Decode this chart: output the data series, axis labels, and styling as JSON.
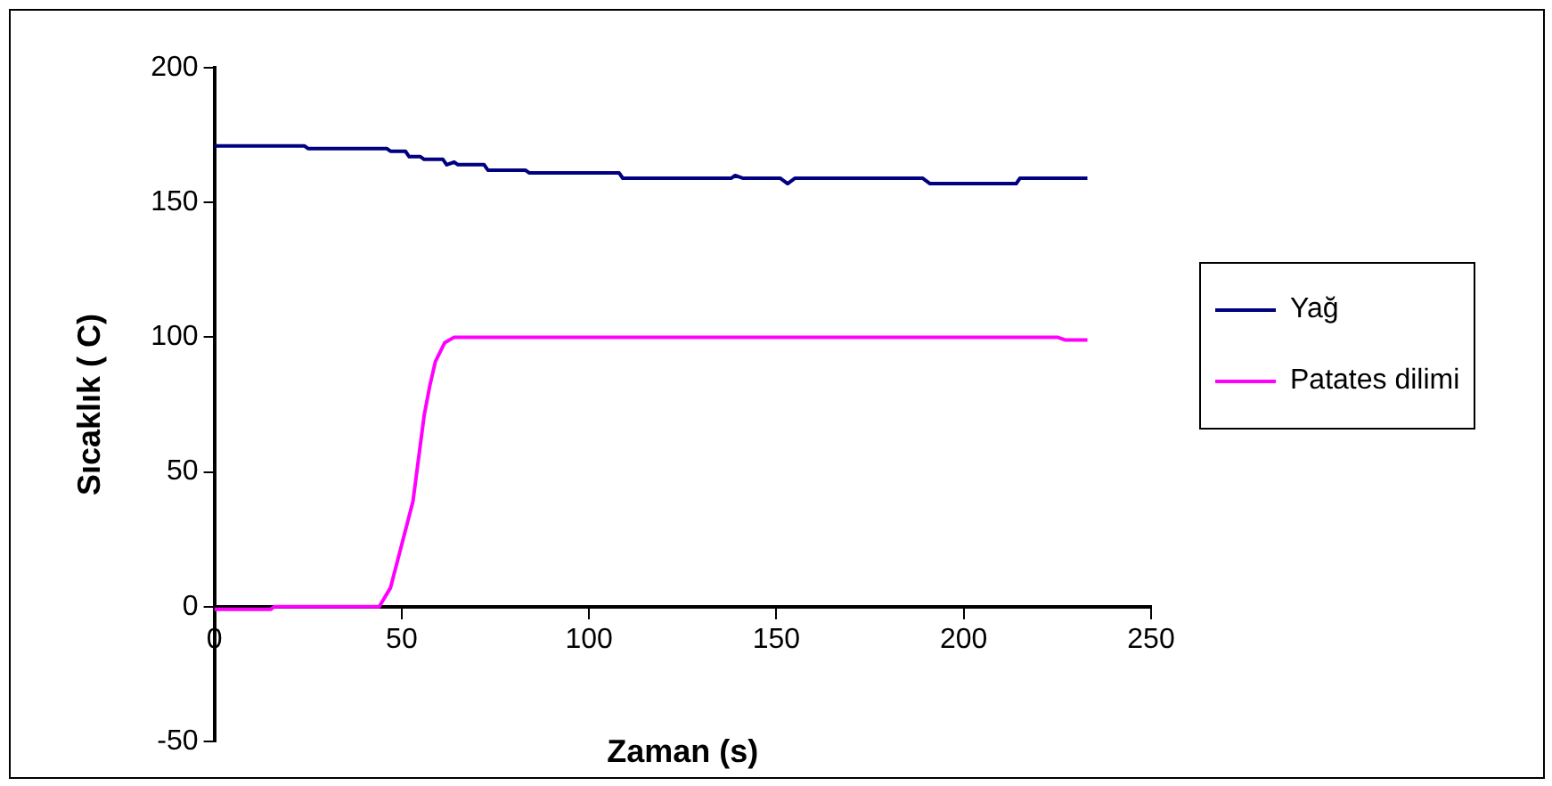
{
  "chart_data": {
    "type": "line",
    "xlabel": "Zaman (s)",
    "ylabel": "Sıcaklık ( C)",
    "xlim": [
      0,
      250
    ],
    "xticks": [
      0,
      50,
      100,
      150,
      200,
      250
    ],
    "ylim": [
      -50,
      200
    ],
    "yticks": [
      -50,
      0,
      50,
      100,
      150,
      200
    ],
    "grid": false,
    "legend": "right",
    "marker": "none",
    "line_style": "solid",
    "series": [
      {
        "name": "Yağ",
        "color": "#000080",
        "x": [
          0,
          24,
          25,
          46,
          47,
          51,
          52,
          55,
          56,
          61,
          62,
          64,
          65,
          72,
          73,
          83,
          84,
          108,
          109,
          138,
          139,
          141,
          151,
          153,
          155,
          189,
          191,
          214,
          215,
          233
        ],
        "values": [
          171,
          171,
          170,
          170,
          169,
          169,
          167,
          167,
          166,
          166,
          164,
          165,
          164,
          164,
          162,
          162,
          161,
          161,
          159,
          159,
          160,
          159,
          159,
          157,
          159,
          159,
          157,
          157,
          159,
          159
        ]
      },
      {
        "name": "Patates dilimi",
        "color": "#ff00ff",
        "x": [
          0,
          15,
          16,
          44,
          47,
          50,
          53,
          54.5,
          56,
          57.5,
          59,
          61.5,
          64,
          66,
          225,
          227,
          233
        ],
        "values": [
          -1,
          -1,
          0,
          0,
          7,
          23,
          39,
          55,
          71,
          82,
          91,
          98,
          100,
          100,
          100,
          99,
          99
        ]
      }
    ]
  }
}
